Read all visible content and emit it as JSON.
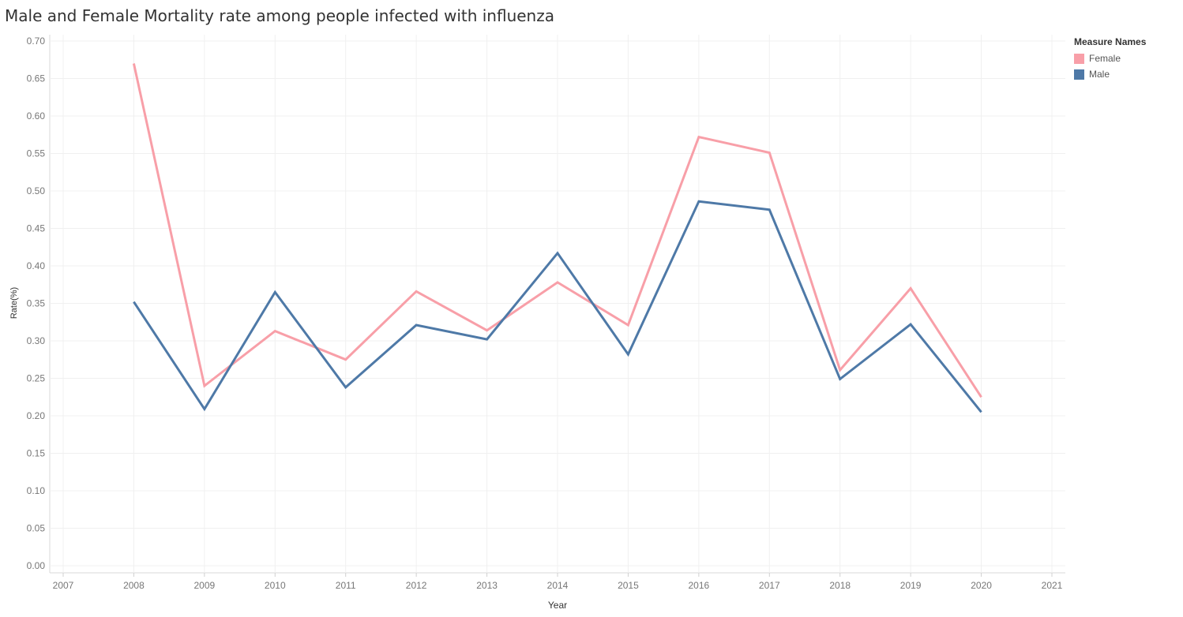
{
  "title": "Male and Female Mortality rate among people infected with influenza",
  "legend": {
    "title": "Measure Names",
    "items": [
      {
        "label": "Female",
        "color": "#f89fa8"
      },
      {
        "label": "Male",
        "color": "#4e79a7"
      }
    ]
  },
  "chart_data": {
    "type": "line",
    "title": "Male and Female Mortality rate among people infected with influenza",
    "xlabel": "Year",
    "ylabel": "Rate(%)",
    "x_ticks": [
      "2007",
      "2008",
      "2009",
      "2010",
      "2011",
      "2012",
      "2013",
      "2014",
      "2015",
      "2016",
      "2017",
      "2018",
      "2019",
      "2020",
      "2021"
    ],
    "y_ticks": [
      "0.00",
      "0.05",
      "0.10",
      "0.15",
      "0.20",
      "0.25",
      "0.30",
      "0.35",
      "0.40",
      "0.45",
      "0.50",
      "0.55",
      "0.60",
      "0.65",
      "0.70"
    ],
    "xlim": [
      2007,
      2021
    ],
    "ylim": [
      0,
      0.7
    ],
    "grid": true,
    "legend_position": "top-right",
    "x": [
      2008,
      2009,
      2010,
      2011,
      2012,
      2013,
      2014,
      2015,
      2016,
      2017,
      2018,
      2019,
      2020
    ],
    "series": [
      {
        "name": "Female",
        "color": "#f89fa8",
        "values": [
          0.67,
          0.24,
          0.313,
          0.275,
          0.366,
          0.314,
          0.378,
          0.321,
          0.572,
          0.551,
          0.261,
          0.37,
          0.225
        ]
      },
      {
        "name": "Male",
        "color": "#4e79a7",
        "values": [
          0.352,
          0.209,
          0.365,
          0.238,
          0.321,
          0.302,
          0.417,
          0.282,
          0.486,
          0.475,
          0.249,
          0.322,
          0.205
        ]
      }
    ]
  }
}
